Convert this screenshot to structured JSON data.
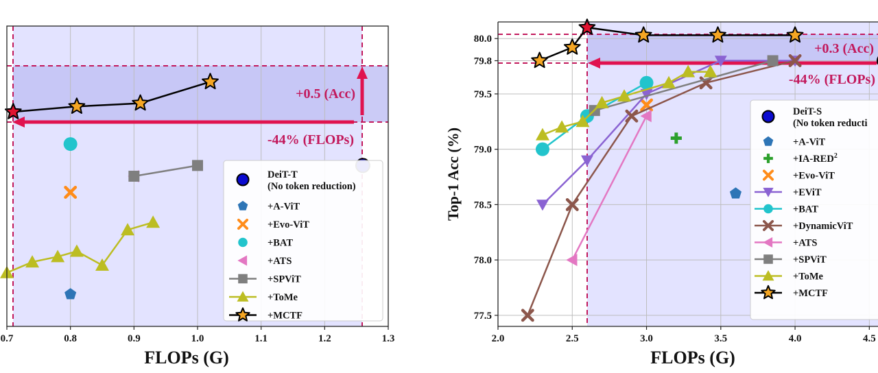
{
  "chart_data": [
    {
      "type": "line",
      "title": "",
      "xlabel": "FLOPs (G)",
      "ylabel": "",
      "xlim": [
        0.7,
        1.3
      ],
      "ylim": [
        70.7,
        73.5
      ],
      "xticks": [
        "0.7",
        "0.8",
        "0.9",
        "1.0",
        "1.1",
        "1.2",
        "1.3"
      ],
      "yticks": [],
      "baseline": {
        "flops": 1.26,
        "acc": 72.2
      },
      "target": {
        "flops": 0.71,
        "acc": 72.7
      },
      "annotations": {
        "acc": "+0.5 (Acc)",
        "flops": "-44% (FLOPs)"
      },
      "series": [
        {
          "name": "DeiT-T (No token reduction)",
          "label_line1": "DeiT-T",
          "label_line2": "(No token reduction)",
          "marker": "circle",
          "color": "#0b0bd0",
          "x": [
            1.26
          ],
          "y": [
            72.2
          ]
        },
        {
          "name": "+A-ViT",
          "marker": "pentagon",
          "color": "#2e75b6",
          "x": [
            0.8
          ],
          "y": [
            71.0
          ]
        },
        {
          "name": "+Evo-ViT",
          "marker": "x",
          "color": "#ff8c1a",
          "x": [
            0.8
          ],
          "y": [
            71.95
          ]
        },
        {
          "name": "+BAT",
          "marker": "circle",
          "color": "#22c4cc",
          "x": [
            0.8
          ],
          "y": [
            72.4
          ]
        },
        {
          "name": "+ATS",
          "marker": "tri-left",
          "color": "#e377c2",
          "x": [
            0.9
          ],
          "y": [
            72.1
          ]
        },
        {
          "name": "+SPViT",
          "marker": "square",
          "color": "#7f7f7f",
          "x": [
            0.9,
            1.0
          ],
          "y": [
            72.1,
            72.2
          ]
        },
        {
          "name": "+ToMe",
          "marker": "tri-up",
          "color": "#bcbd22",
          "x": [
            0.7,
            0.74,
            0.78,
            0.81,
            0.85,
            0.89,
            0.93
          ],
          "y": [
            71.2,
            71.3,
            71.35,
            71.4,
            71.27,
            71.6,
            71.67
          ]
        },
        {
          "name": "+MCTF",
          "marker": "star",
          "color": "#f5a623",
          "x": [
            0.71,
            0.81,
            0.91,
            1.02
          ],
          "y": [
            72.7,
            72.75,
            72.78,
            72.98
          ]
        }
      ],
      "legend": "lower-right"
    },
    {
      "type": "line",
      "title": "",
      "xlabel": "FLOPs (G)",
      "ylabel": "Top-1 Acc (%)",
      "xlim": [
        2.0,
        4.6
      ],
      "ylim": [
        77.4,
        80.15
      ],
      "xticks": [
        "2.0",
        "2.5",
        "3.0",
        "3.5",
        "4.0",
        "4.5"
      ],
      "yticks": [
        "77.5",
        "78.0",
        "78.5",
        "79.0",
        "79.5",
        "79.8",
        "80.0"
      ],
      "baseline": {
        "flops": 4.6,
        "acc": 79.8
      },
      "target": {
        "flops": 2.6,
        "acc": 80.1
      },
      "annotations": {
        "acc": "+0.3 (Acc)",
        "flops": "-44% (FLOPs)"
      },
      "series": [
        {
          "name": "DeiT-S (No token reduction)",
          "label_line1": "DeiT-S",
          "label_line2": "(No token reducti",
          "marker": "circle",
          "color": "#0b0bd0",
          "x": [
            4.6
          ],
          "y": [
            79.8
          ]
        },
        {
          "name": "+A-ViT",
          "marker": "pentagon",
          "color": "#2e75b6",
          "x": [
            3.6
          ],
          "y": [
            78.6
          ]
        },
        {
          "name": "+IA-RED2",
          "label_base": "+IA-RED",
          "label_sup": "2",
          "marker": "plus",
          "color": "#2ca02c",
          "x": [
            3.2
          ],
          "y": [
            79.1
          ]
        },
        {
          "name": "+Evo-ViT",
          "marker": "x",
          "color": "#ff8c1a",
          "x": [
            3.0
          ],
          "y": [
            79.4
          ]
        },
        {
          "name": "+EViT",
          "marker": "tri-down",
          "color": "#8a63d2",
          "x": [
            2.3,
            2.6,
            3.0,
            3.5,
            4.0
          ],
          "y": [
            78.5,
            78.9,
            79.5,
            79.8,
            79.8
          ]
        },
        {
          "name": "+BAT",
          "marker": "circle",
          "color": "#22c4cc",
          "x": [
            2.3,
            2.6,
            3.0
          ],
          "y": [
            79.0,
            79.3,
            79.6
          ]
        },
        {
          "name": "+DynamicViT",
          "marker": "x",
          "color": "#8c564b",
          "x": [
            2.2,
            2.5,
            2.9,
            3.4,
            4.0
          ],
          "y": [
            77.5,
            78.5,
            79.3,
            79.6,
            79.8
          ]
        },
        {
          "name": "+ATS",
          "marker": "tri-left",
          "color": "#e377c2",
          "x": [
            2.5,
            3.0
          ],
          "y": [
            78.0,
            79.3
          ]
        },
        {
          "name": "+SPViT",
          "marker": "square",
          "color": "#7f7f7f",
          "x": [
            2.65,
            3.85
          ],
          "y": [
            79.35,
            79.8
          ]
        },
        {
          "name": "+ToMe",
          "marker": "tri-up",
          "color": "#bcbd22",
          "x": [
            2.3,
            2.43,
            2.57,
            2.7,
            2.85,
            3.15,
            3.28,
            3.43
          ],
          "y": [
            79.13,
            79.2,
            79.25,
            79.42,
            79.48,
            79.6,
            79.7,
            79.7
          ]
        },
        {
          "name": "+MCTF",
          "marker": "star",
          "color": "#f5a623",
          "x": [
            2.28,
            2.5,
            2.6,
            2.98,
            3.48,
            4.0
          ],
          "y": [
            79.8,
            79.92,
            80.1,
            80.03,
            80.03,
            80.03
          ]
        }
      ],
      "legend": "lower-right"
    }
  ]
}
